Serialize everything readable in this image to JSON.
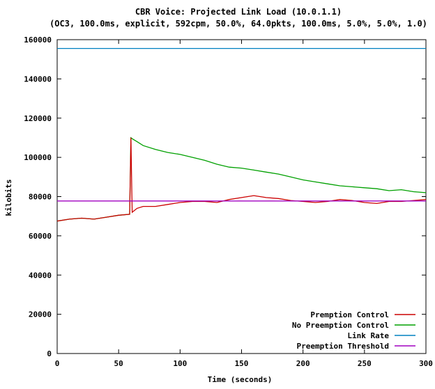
{
  "chart_data": {
    "type": "line",
    "title": "CBR Voice: Projected Link Load (10.0.1.1)",
    "subtitle": "(OC3, 100.0ms, explicit, 592cpm, 50.0%, 64.0pkts, 100.0ms, 5.0%, 5.0%, 1.0)",
    "xlabel": "Time (seconds)",
    "ylabel": "kilobits",
    "xlim": [
      0,
      300
    ],
    "ylim": [
      0,
      160000
    ],
    "xticks": [
      "0",
      "50",
      "100",
      "150",
      "200",
      "250",
      "300"
    ],
    "yticks": [
      "0",
      "20000",
      "40000",
      "60000",
      "80000",
      "100000",
      "120000",
      "140000",
      "160000"
    ],
    "grid": false,
    "legend_position": "bottom-right",
    "series": [
      {
        "name": "Premption Control",
        "color": "#cc0000",
        "x": [
          0,
          10,
          20,
          30,
          40,
          50,
          59,
          60,
          61,
          65,
          70,
          80,
          90,
          100,
          110,
          120,
          130,
          140,
          150,
          155,
          160,
          165,
          170,
          180,
          190,
          200,
          210,
          220,
          230,
          240,
          250,
          260,
          270,
          280,
          290,
          300
        ],
        "y": [
          67500,
          68500,
          69000,
          68500,
          69500,
          70500,
          71000,
          110000,
          72000,
          74000,
          75000,
          75000,
          76000,
          77000,
          77500,
          77500,
          77000,
          78500,
          79500,
          80000,
          80500,
          80000,
          79500,
          79000,
          78000,
          77500,
          77000,
          77500,
          78500,
          78000,
          77000,
          76500,
          77500,
          77500,
          78000,
          78500
        ]
      },
      {
        "name": "No Preemption Control",
        "color": "#00a000",
        "x": [
          0,
          10,
          20,
          30,
          40,
          50,
          59,
          60,
          61,
          65,
          70,
          80,
          90,
          100,
          110,
          120,
          130,
          140,
          150,
          160,
          170,
          180,
          190,
          200,
          210,
          220,
          230,
          240,
          250,
          260,
          270,
          280,
          290,
          300
        ],
        "y": [
          67500,
          68500,
          69000,
          68500,
          69500,
          70500,
          71000,
          110000,
          109500,
          108000,
          106000,
          104000,
          102500,
          101500,
          100000,
          98500,
          96500,
          95000,
          94500,
          93500,
          92500,
          91500,
          90000,
          88500,
          87500,
          86500,
          85500,
          85000,
          84500,
          84000,
          83000,
          83500,
          82500,
          82000
        ]
      },
      {
        "name": "Link Rate",
        "color": "#0080c0",
        "x": [
          0,
          300
        ],
        "y": [
          155520,
          155520
        ]
      },
      {
        "name": "Preemption Threshold",
        "color": "#a000c0",
        "x": [
          0,
          300
        ],
        "y": [
          77760,
          77760
        ]
      }
    ]
  }
}
